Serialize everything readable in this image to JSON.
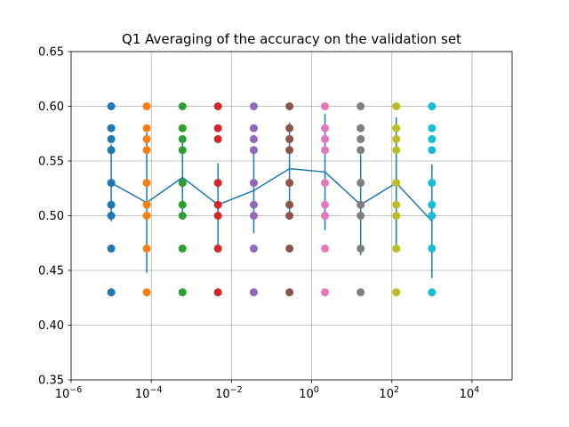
{
  "chart_data": {
    "type": "scatter",
    "title": "Q1 Averaging of the accuracy on the validation set",
    "xlabel": "",
    "ylabel": "",
    "x_scale": "log",
    "xlim": [
      1e-06,
      100000.0
    ],
    "ylim": [
      0.35,
      0.65
    ],
    "grid": true,
    "x_ticks": [
      {
        "value": 1e-06,
        "base": "10",
        "exp": "−6"
      },
      {
        "value": 0.0001,
        "base": "10",
        "exp": "−4"
      },
      {
        "value": 0.01,
        "base": "10",
        "exp": "−2"
      },
      {
        "value": 1,
        "base": "10",
        "exp": "0"
      },
      {
        "value": 100,
        "base": "10",
        "exp": "2"
      },
      {
        "value": 10000.0,
        "base": "10",
        "exp": "4"
      }
    ],
    "y_ticks": [
      {
        "value": 0.35,
        "label": "0.35"
      },
      {
        "value": 0.4,
        "label": "0.40"
      },
      {
        "value": 0.45,
        "label": "0.45"
      },
      {
        "value": 0.5,
        "label": "0.50"
      },
      {
        "value": 0.55,
        "label": "0.55"
      },
      {
        "value": 0.6,
        "label": "0.60"
      },
      {
        "value": 0.65,
        "label": "0.65"
      }
    ],
    "scatter_series": [
      {
        "color": "#1f77b4",
        "x": 1e-05,
        "y": [
          0.6,
          0.58,
          0.57,
          0.56,
          0.53,
          0.51,
          0.5,
          0.47,
          0.43
        ]
      },
      {
        "color": "#ff7f0e",
        "x": 7.7e-05,
        "y": [
          0.6,
          0.58,
          0.57,
          0.56,
          0.53,
          0.51,
          0.5,
          0.47,
          0.43
        ]
      },
      {
        "color": "#2ca02c",
        "x": 0.0006,
        "y": [
          0.6,
          0.58,
          0.57,
          0.56,
          0.53,
          0.51,
          0.5,
          0.47,
          0.43
        ]
      },
      {
        "color": "#d62728",
        "x": 0.0046,
        "y": [
          0.6,
          0.58,
          0.57,
          0.53,
          0.51,
          0.5,
          0.47,
          0.43
        ]
      },
      {
        "color": "#9467bd",
        "x": 0.036,
        "y": [
          0.6,
          0.58,
          0.57,
          0.56,
          0.53,
          0.51,
          0.5,
          0.47,
          0.43
        ]
      },
      {
        "color": "#8c564b",
        "x": 0.28,
        "y": [
          0.6,
          0.58,
          0.57,
          0.56,
          0.53,
          0.51,
          0.5,
          0.47,
          0.43
        ]
      },
      {
        "color": "#e377c2",
        "x": 2.15,
        "y": [
          0.6,
          0.58,
          0.57,
          0.56,
          0.53,
          0.51,
          0.5,
          0.47,
          0.43
        ]
      },
      {
        "color": "#7f7f7f",
        "x": 16.7,
        "y": [
          0.6,
          0.58,
          0.57,
          0.56,
          0.53,
          0.51,
          0.5,
          0.47,
          0.43
        ]
      },
      {
        "color": "#bcbd22",
        "x": 129,
        "y": [
          0.6,
          0.58,
          0.57,
          0.56,
          0.53,
          0.51,
          0.5,
          0.47,
          0.43
        ]
      },
      {
        "color": "#17becf",
        "x": 1000,
        "y": [
          0.6,
          0.58,
          0.57,
          0.56,
          0.53,
          0.51,
          0.5,
          0.47,
          0.43
        ]
      }
    ],
    "mean_line": {
      "color": "#1f77b4",
      "x": [
        1e-05,
        7.7e-05,
        0.0006,
        0.0046,
        0.036,
        0.28,
        2.15,
        16.7,
        129,
        1000
      ],
      "y": [
        0.53,
        0.512,
        0.535,
        0.51,
        0.523,
        0.543,
        0.54,
        0.51,
        0.53,
        0.495
      ],
      "err": [
        0.035,
        0.064,
        0.036,
        0.038,
        0.039,
        0.042,
        0.053,
        0.046,
        0.06,
        0.052
      ]
    }
  }
}
